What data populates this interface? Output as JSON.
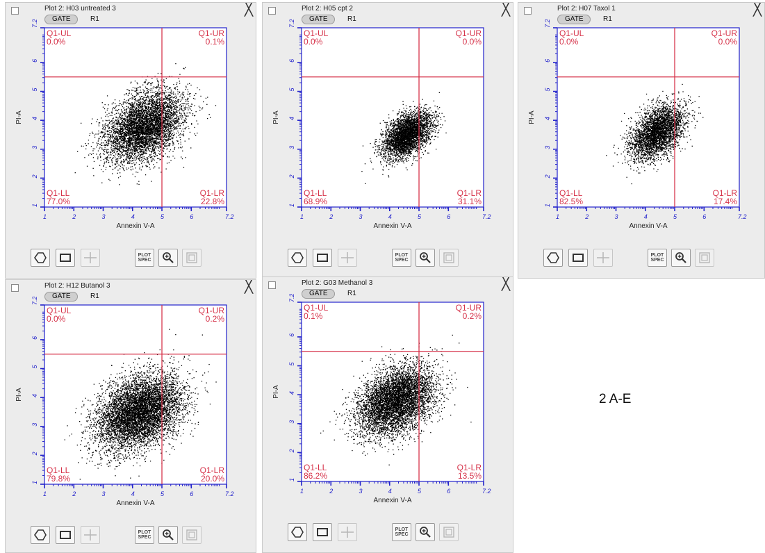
{
  "figure_label": "2 A-E",
  "colors": {
    "gate_line": "#d6334a",
    "axis": "#2222cc",
    "quadrant_text": "#d6334a",
    "dots": "#000000"
  },
  "icons": [
    "polygon-gate-icon",
    "rectangle-gate-icon",
    "quadrant-gate-icon",
    "plot-spec-icon",
    "zoom-icon",
    "fit-icon"
  ],
  "toolbar": {
    "plot_spec_label": [
      "PLOT",
      "SPEC"
    ]
  },
  "chart_data": [
    {
      "type": "scatter",
      "title": "Plot 2: H03 untreated 3",
      "gate_label": "GATE",
      "region": "R1",
      "xlabel": "Annexin V-A",
      "ylabel": "PI-A",
      "xlim": [
        1,
        7.2
      ],
      "ylim": [
        1,
        7.2
      ],
      "x_ticks": [
        "1",
        "2",
        "3",
        "4",
        "5",
        "6",
        "7.2"
      ],
      "y_ticks": [
        "1",
        "2",
        "3",
        "4",
        "5",
        "6",
        "7.2"
      ],
      "quadrant_divider": {
        "x": 5,
        "y": 5.5
      },
      "quadrants": {
        "UL": {
          "label": "Q1-UL",
          "percent": "0.0%"
        },
        "UR": {
          "label": "Q1-UR",
          "percent": "0.1%"
        },
        "LL": {
          "label": "Q1-LL",
          "percent": "77.0%"
        },
        "LR": {
          "label": "Q1-LR",
          "percent": "22.8%"
        }
      },
      "population": {
        "n": 5200,
        "center": [
          4.4,
          3.8
        ],
        "spread": [
          0.8,
          0.5
        ],
        "slope": 0.9
      }
    },
    {
      "type": "scatter",
      "title": "Plot 2: H05 cpt 2",
      "gate_label": "GATE",
      "region": "R1",
      "xlabel": "Annexin V-A",
      "ylabel": "PI-A",
      "xlim": [
        1,
        7.2
      ],
      "ylim": [
        1,
        7.2
      ],
      "x_ticks": [
        "1",
        "2",
        "3",
        "4",
        "5",
        "6",
        "7.2"
      ],
      "y_ticks": [
        "1",
        "2",
        "3",
        "4",
        "5",
        "6",
        "7.2"
      ],
      "quadrant_divider": {
        "x": 5,
        "y": 5.5
      },
      "quadrants": {
        "UL": {
          "label": "Q1-UL",
          "percent": "0.0%"
        },
        "UR": {
          "label": "Q1-UR",
          "percent": "0.0%"
        },
        "LL": {
          "label": "Q1-LL",
          "percent": "68.9%"
        },
        "LR": {
          "label": "Q1-LR",
          "percent": "31.1%"
        }
      },
      "population": {
        "n": 3600,
        "center": [
          4.6,
          3.5
        ],
        "spread": [
          0.5,
          0.3
        ],
        "slope": 1.0
      }
    },
    {
      "type": "scatter",
      "title": "Plot 2: H07 Taxol 1",
      "gate_label": "GATE",
      "region": "R1",
      "xlabel": "Annexin V-A",
      "ylabel": "PI-A",
      "xlim": [
        1,
        7.2
      ],
      "ylim": [
        1,
        7.2
      ],
      "x_ticks": [
        "1",
        "2",
        "3",
        "4",
        "5",
        "6",
        "7.2"
      ],
      "y_ticks": [
        "1",
        "2",
        "3",
        "4",
        "5",
        "6",
        "7.2"
      ],
      "quadrant_divider": {
        "x": 5,
        "y": 5.5
      },
      "quadrants": {
        "UL": {
          "label": "Q1-UL",
          "percent": "0.0%"
        },
        "UR": {
          "label": "Q1-UR",
          "percent": "0.0%"
        },
        "LL": {
          "label": "Q1-LL",
          "percent": "82.5%"
        },
        "LR": {
          "label": "Q1-LR",
          "percent": "17.4%"
        }
      },
      "population": {
        "n": 3400,
        "center": [
          4.4,
          3.6
        ],
        "spread": [
          0.55,
          0.35
        ],
        "slope": 1.05
      }
    },
    {
      "type": "scatter",
      "title": "Plot 2: H12 Butanol 3",
      "gate_label": "GATE",
      "region": "R1",
      "xlabel": "Annexin V-A",
      "ylabel": "PI-A",
      "xlim": [
        1,
        7.2
      ],
      "ylim": [
        1,
        7.2
      ],
      "x_ticks": [
        "1",
        "2",
        "3",
        "4",
        "5",
        "6",
        "7.2"
      ],
      "y_ticks": [
        "1",
        "2",
        "3",
        "4",
        "5",
        "6",
        "7.2"
      ],
      "quadrant_divider": {
        "x": 5,
        "y": 5.5
      },
      "quadrants": {
        "UL": {
          "label": "Q1-UL",
          "percent": "0.0%"
        },
        "UR": {
          "label": "Q1-UR",
          "percent": "0.2%"
        },
        "LL": {
          "label": "Q1-LL",
          "percent": "79.8%"
        },
        "LR": {
          "label": "Q1-LR",
          "percent": "20.0%"
        }
      },
      "population": {
        "n": 6500,
        "center": [
          4.2,
          3.5
        ],
        "spread": [
          0.85,
          0.55
        ],
        "slope": 0.9
      }
    },
    {
      "type": "scatter",
      "title": "Plot 2: G03 Methanol 3",
      "gate_label": "GATE",
      "region": "R1",
      "xlabel": "Annexin V-A",
      "ylabel": "PI-A",
      "xlim": [
        1,
        7.2
      ],
      "ylim": [
        1,
        7.2
      ],
      "x_ticks": [
        "1",
        "2",
        "3",
        "4",
        "5",
        "6",
        "7.2"
      ],
      "y_ticks": [
        "1",
        "2",
        "3",
        "4",
        "5",
        "6",
        "7.2"
      ],
      "quadrant_divider": {
        "x": 5,
        "y": 5.5
      },
      "quadrants": {
        "UL": {
          "label": "Q1-UL",
          "percent": "0.1%"
        },
        "UR": {
          "label": "Q1-UR",
          "percent": "0.2%"
        },
        "LL": {
          "label": "Q1-LL",
          "percent": "86.2%"
        },
        "LR": {
          "label": "Q1-LR",
          "percent": "13.5%"
        }
      },
      "population": {
        "n": 5600,
        "center": [
          4.2,
          3.8
        ],
        "spread": [
          0.75,
          0.5
        ],
        "slope": 0.95
      }
    }
  ]
}
